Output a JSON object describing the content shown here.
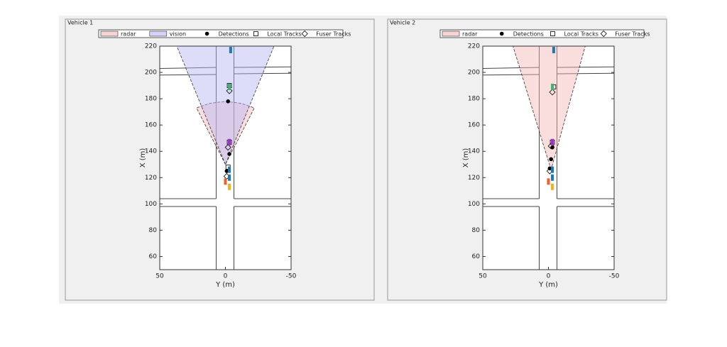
{
  "chart_data": [
    {
      "type": "scatter",
      "title": "Vehicle 1",
      "xlabel": "Y (m)",
      "ylabel": "X (m)",
      "xlim": [
        50,
        -50
      ],
      "ylim": [
        50,
        220
      ],
      "xticks": [
        50,
        0,
        -50
      ],
      "yticks": [
        220,
        200,
        180,
        160,
        140,
        120,
        100,
        80,
        60
      ],
      "series": [
        {
          "name": "radar",
          "marker": "patch",
          "color": "#f4b6b6",
          "x": [
            0,
            22,
            12,
            0,
            -12,
            -22
          ],
          "values": [
            130,
            173,
            176.5,
            178,
            176.5,
            173
          ]
        },
        {
          "name": "vision",
          "marker": "patch",
          "color": "#b4b4f4",
          "x": [
            0,
            37,
            -37
          ],
          "values": [
            130,
            220,
            220
          ]
        },
        {
          "name": "Detections",
          "marker": "o",
          "color": "#000000",
          "x": [
            -2,
            -3,
            -1
          ],
          "values": [
            178,
            138,
            125
          ]
        },
        {
          "name": "Local Tracks",
          "marker": "s",
          "color": "#000000",
          "x": [
            -3,
            -3,
            -2
          ],
          "values": [
            190,
            147,
            128
          ]
        },
        {
          "name": "Fuser Tracks",
          "marker": "d",
          "color": "#000000",
          "x": [
            -3,
            -2,
            -1
          ],
          "values": [
            186,
            143,
            121
          ]
        },
        {
          "marker": "rect",
          "colors": [
            "#1f77b4",
            "#3cb371",
            "#9b30d0",
            "#1f77b4",
            "#1f77b4",
            "#e8622c",
            "#f0b020"
          ],
          "x": [
            -4,
            -3,
            -3,
            -3,
            -3,
            0,
            -3
          ],
          "values": [
            217,
            189,
            147,
            126,
            120,
            117,
            113
          ]
        }
      ]
    },
    {
      "type": "scatter",
      "title": "Vehicle 2",
      "xlabel": "Y (m)",
      "ylabel": "X (m)",
      "xlim": [
        50,
        -50
      ],
      "ylim": [
        50,
        220
      ],
      "xticks": [
        50,
        0,
        -50
      ],
      "yticks": [
        220,
        200,
        180,
        160,
        140,
        120,
        100,
        80,
        60
      ],
      "series": [
        {
          "name": "radar",
          "marker": "patch",
          "color": "#f4b6b6",
          "x": [
            -2,
            27,
            -28
          ],
          "values": [
            126,
            220,
            220
          ]
        },
        {
          "name": "Detections",
          "marker": "o",
          "color": "#000000",
          "x": [
            -3,
            -2,
            -1
          ],
          "values": [
            143,
            134,
            127
          ]
        },
        {
          "name": "Local Tracks",
          "marker": "s",
          "color": "#000000",
          "x": [
            -4,
            -3
          ],
          "values": [
            189,
            147
          ]
        },
        {
          "name": "Fuser Tracks",
          "marker": "d",
          "color": "#000000",
          "x": [
            -3,
            -2,
            -1
          ],
          "values": [
            185,
            144,
            125
          ]
        },
        {
          "marker": "rect",
          "colors": [
            "#1f77b4",
            "#3cb371",
            "#9b30d0",
            "#1f77b4",
            "#1f77b4",
            "#e8622c",
            "#f0b020"
          ],
          "x": [
            -4,
            -3,
            -3,
            -3,
            -3,
            0,
            -3
          ],
          "values": [
            217,
            189,
            147,
            126,
            120,
            117,
            113
          ]
        }
      ]
    }
  ]
}
